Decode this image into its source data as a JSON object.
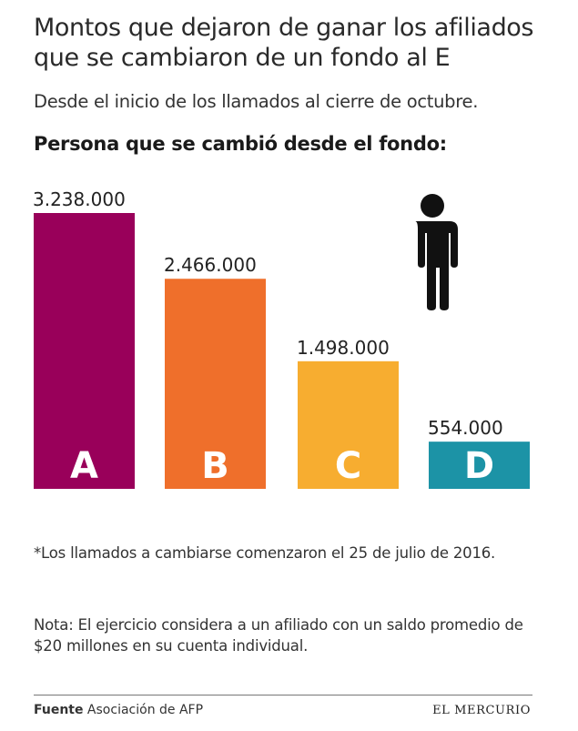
{
  "header": {
    "title": "Montos que dejaron de ganar los afiliados que se cambiaron de un fondo al E",
    "subtitle": "Desde el inicio de los llamados al cierre de octubre.",
    "section_title": "Persona que se cambió desde el fondo:"
  },
  "icons": {
    "figure": "person-icon"
  },
  "chart_data": {
    "type": "bar",
    "categories": [
      "A",
      "B",
      "C",
      "D"
    ],
    "values": [
      3238000,
      2466000,
      1498000,
      554000
    ],
    "value_labels": [
      "3.238.000",
      "2.466.000",
      "1.498.000",
      "554.000"
    ],
    "colors": [
      "#99005a",
      "#ef6f2b",
      "#f7ad30",
      "#1c93a6"
    ],
    "ylim": [
      0,
      3238000
    ],
    "grid": false,
    "legend": "none"
  },
  "notes": {
    "footnote": "*Los llamados a cambiarse comenzaron el 25 de julio de 2016.",
    "note": "Nota: El ejercicio considera a un afiliado con un saldo promedio de $20 millones en su cuenta individual."
  },
  "footer": {
    "source_label": "Fuente",
    "source_text": " Asociación de AFP",
    "brand": "EL MERCURIO"
  }
}
